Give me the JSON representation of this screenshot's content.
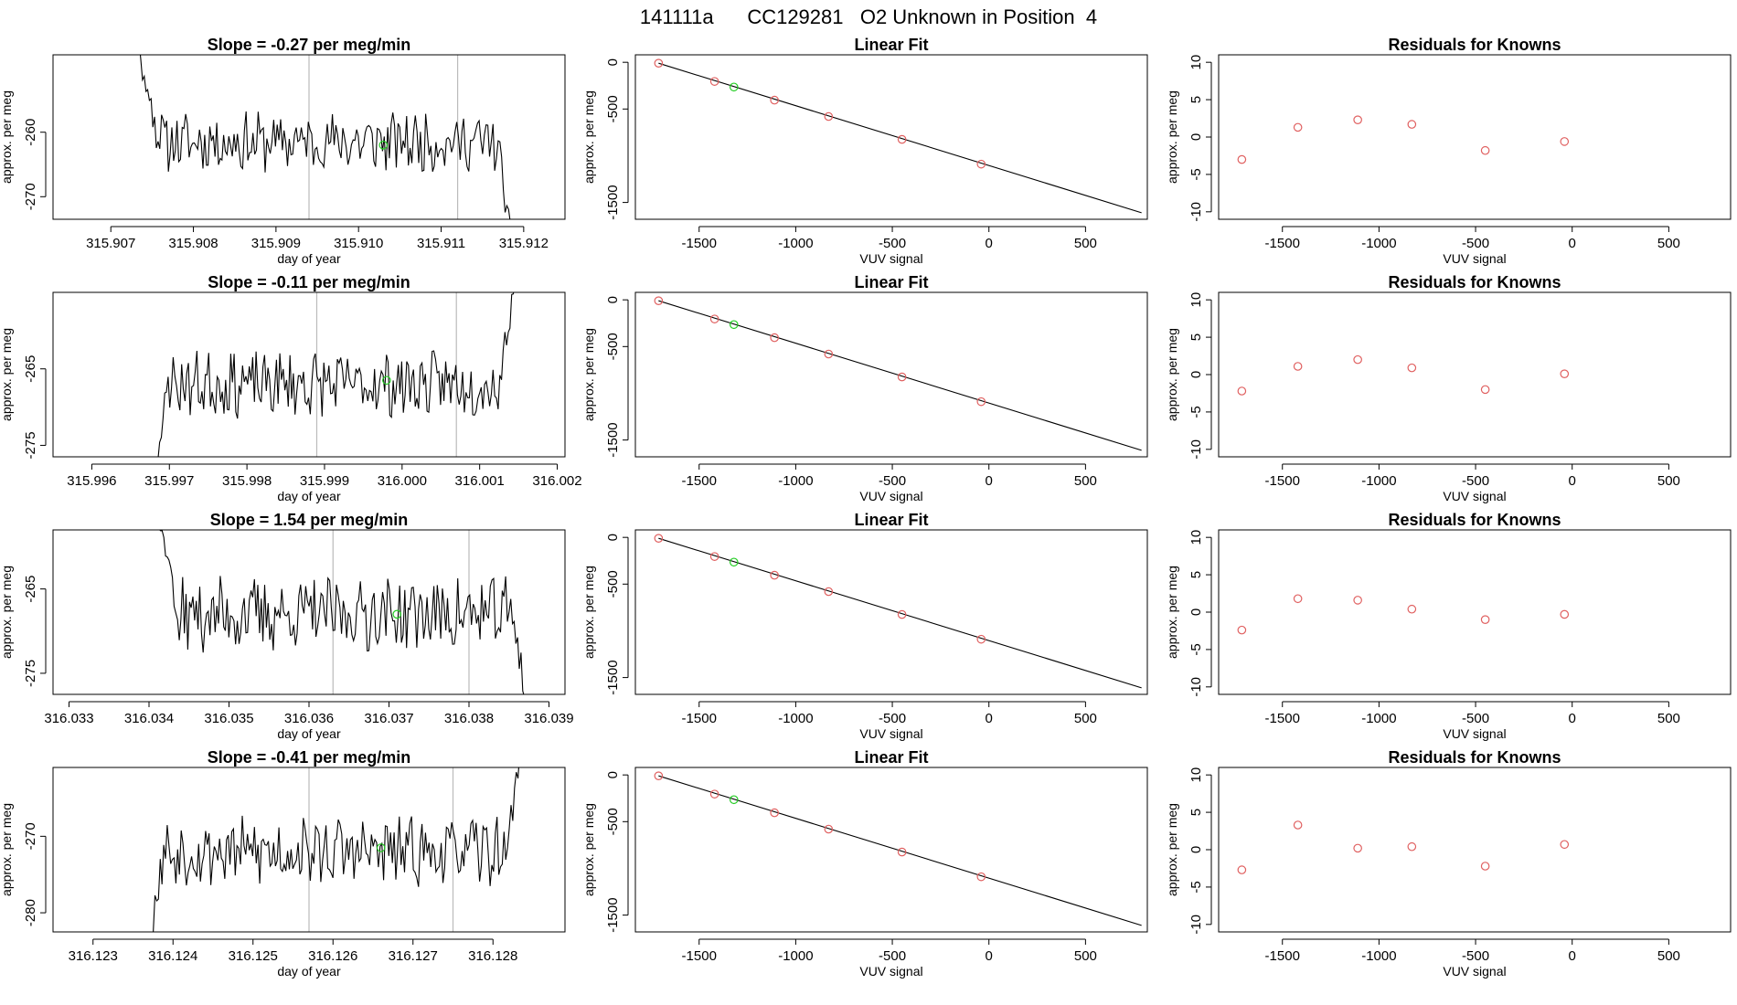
{
  "header": {
    "title": "141111a      CC129281   O2 Unknown in Position  4"
  },
  "colors": {
    "line": "#000000",
    "known_point": "#e06060",
    "unknown_point": "#22cc22",
    "marker_line": "#bbbbbb",
    "frame": "#000000"
  },
  "chart_data": [
    {
      "type": "line",
      "title": "Slope =  -0.27  per meg/min",
      "xlabel": "day of year",
      "ylabel": "approx. per meg",
      "xlim": [
        315.9063,
        315.9125
      ],
      "ylim": [
        -273.5,
        -248.0
      ],
      "xticks": [
        315.907,
        315.908,
        315.909,
        315.91,
        315.911,
        315.912
      ],
      "xtick_labels": [
        "315.907",
        "315.908",
        "315.909",
        "315.910",
        "315.911",
        "315.912"
      ],
      "yticks": [
        -260,
        -270
      ],
      "ytick_labels": [
        "-260",
        "-270"
      ],
      "start_day": 315.9073,
      "end_day": 315.9119,
      "baseline": -261.5,
      "noise": 2.5,
      "seed": 11,
      "start_level": -245,
      "end_level": -280,
      "vlines": [
        315.9094,
        315.9112
      ],
      "unknown_point": {
        "x": 315.9103,
        "y": -262.0
      }
    },
    {
      "type": "scatter",
      "title": "Linear Fit",
      "xlabel": "VUV signal",
      "ylabel": "approx. per meg",
      "xlim": [
        -1830,
        820
      ],
      "ylim": [
        -1680,
        80
      ],
      "xticks": [
        -1500,
        -1000,
        -500,
        0,
        500
      ],
      "xtick_labels": [
        "-1500",
        "-1000",
        "-500",
        "0",
        "500"
      ],
      "yticks": [
        0,
        -500,
        -1500
      ],
      "ytick_labels": [
        "0",
        "-500",
        "-1500"
      ],
      "fit_line": {
        "x0": -1710,
        "y0": -10,
        "x1": 790,
        "y1": -1610
      },
      "knowns": [
        {
          "x": -1710,
          "y": -10
        },
        {
          "x": -1420,
          "y": -205
        },
        {
          "x": -1110,
          "y": -405
        },
        {
          "x": -830,
          "y": -580
        },
        {
          "x": -450,
          "y": -825
        },
        {
          "x": -40,
          "y": -1090
        }
      ],
      "unknown_point": {
        "x": -1320,
        "y": -265
      }
    },
    {
      "type": "scatter",
      "title": "Residuals for Knowns",
      "xlabel": "VUV signal",
      "ylabel": "approx. per meg",
      "xlim": [
        -1830,
        820
      ],
      "ylim": [
        -11,
        11
      ],
      "xticks": [
        -1500,
        -1000,
        -500,
        0,
        500
      ],
      "xtick_labels": [
        "-1500",
        "-1000",
        "-500",
        "0",
        "500"
      ],
      "yticks": [
        10,
        5,
        0,
        -5,
        -10
      ],
      "ytick_labels": [
        "10",
        "5",
        "0",
        "-5",
        "-10"
      ],
      "points": [
        {
          "x": -1710,
          "y": -3.0
        },
        {
          "x": -1420,
          "y": 1.3
        },
        {
          "x": -1110,
          "y": 2.3
        },
        {
          "x": -830,
          "y": 1.7
        },
        {
          "x": -450,
          "y": -1.8
        },
        {
          "x": -40,
          "y": -0.6
        }
      ]
    },
    {
      "type": "line",
      "title": "Slope =  -0.11  per meg/min",
      "xlabel": "day of year",
      "ylabel": "approx. per meg",
      "xlim": [
        315.9955,
        316.0021
      ],
      "ylim": [
        -276.5,
        -255.0
      ],
      "xticks": [
        315.996,
        315.997,
        315.998,
        315.999,
        316.0,
        316.001,
        316.002
      ],
      "xtick_labels": [
        "315.996",
        "315.997",
        "315.998",
        "315.999",
        "316.000",
        "316.001",
        "316.002"
      ],
      "yticks": [
        -265,
        -275
      ],
      "ytick_labels": [
        "-265",
        "-275"
      ],
      "start_day": 315.9967,
      "end_day": 316.0015,
      "baseline": -267.0,
      "noise": 2.3,
      "seed": 23,
      "start_level": -285,
      "end_level": -250,
      "vlines": [
        315.9989,
        316.0007
      ],
      "unknown_point": {
        "x": 315.9998,
        "y": -266.5
      }
    },
    {
      "type": "scatter",
      "title": "Linear Fit",
      "xlabel": "VUV signal",
      "ylabel": "approx. per meg",
      "xlim": [
        -1830,
        820
      ],
      "ylim": [
        -1680,
        80
      ],
      "xticks": [
        -1500,
        -1000,
        -500,
        0,
        500
      ],
      "xtick_labels": [
        "-1500",
        "-1000",
        "-500",
        "0",
        "500"
      ],
      "yticks": [
        0,
        -500,
        -1500
      ],
      "ytick_labels": [
        "0",
        "-500",
        "-1500"
      ],
      "fit_line": {
        "x0": -1710,
        "y0": -10,
        "x1": 790,
        "y1": -1610
      },
      "knowns": [
        {
          "x": -1710,
          "y": -10
        },
        {
          "x": -1420,
          "y": -205
        },
        {
          "x": -1110,
          "y": -405
        },
        {
          "x": -830,
          "y": -580
        },
        {
          "x": -450,
          "y": -825
        },
        {
          "x": -40,
          "y": -1090
        }
      ],
      "unknown_point": {
        "x": -1320,
        "y": -265
      }
    },
    {
      "type": "scatter",
      "title": "Residuals for Knowns",
      "xlabel": "VUV signal",
      "ylabel": "approx. per meg",
      "xlim": [
        -1830,
        820
      ],
      "ylim": [
        -11,
        11
      ],
      "xticks": [
        -1500,
        -1000,
        -500,
        0,
        500
      ],
      "xtick_labels": [
        "-1500",
        "-1000",
        "-500",
        "0",
        "500"
      ],
      "yticks": [
        10,
        5,
        0,
        -5,
        -10
      ],
      "ytick_labels": [
        "10",
        "5",
        "0",
        "-5",
        "-10"
      ],
      "points": [
        {
          "x": -1710,
          "y": -2.2
        },
        {
          "x": -1420,
          "y": 1.1
        },
        {
          "x": -1110,
          "y": 2.0
        },
        {
          "x": -830,
          "y": 0.9
        },
        {
          "x": -450,
          "y": -2.0
        },
        {
          "x": -40,
          "y": 0.1
        }
      ]
    },
    {
      "type": "line",
      "title": "Slope =  1.54  per meg/min",
      "xlabel": "day of year",
      "ylabel": "approx. per meg",
      "xlim": [
        316.0328,
        316.0392
      ],
      "ylim": [
        -277.5,
        -258.0
      ],
      "xticks": [
        316.033,
        316.034,
        316.035,
        316.036,
        316.037,
        316.038,
        316.039
      ],
      "xtick_labels": [
        "316.033",
        "316.034",
        "316.035",
        "316.036",
        "316.037",
        "316.038",
        "316.039"
      ],
      "yticks": [
        -265,
        -275
      ],
      "ytick_labels": [
        "-265",
        "-275"
      ],
      "start_day": 316.0341,
      "end_day": 316.0388,
      "baseline": -268.0,
      "noise": 2.4,
      "seed": 37,
      "start_level": -255,
      "end_level": -285,
      "vlines": [
        316.0363,
        316.038
      ],
      "unknown_point": {
        "x": 316.0371,
        "y": -268.0
      }
    },
    {
      "type": "scatter",
      "title": "Linear Fit",
      "xlabel": "VUV signal",
      "ylabel": "approx. per meg",
      "xlim": [
        -1830,
        820
      ],
      "ylim": [
        -1680,
        80
      ],
      "xticks": [
        -1500,
        -1000,
        -500,
        0,
        500
      ],
      "xtick_labels": [
        "-1500",
        "-1000",
        "-500",
        "0",
        "500"
      ],
      "yticks": [
        0,
        -500,
        -1500
      ],
      "ytick_labels": [
        "0",
        "-500",
        "-1500"
      ],
      "fit_line": {
        "x0": -1710,
        "y0": -10,
        "x1": 790,
        "y1": -1610
      },
      "knowns": [
        {
          "x": -1710,
          "y": -10
        },
        {
          "x": -1420,
          "y": -205
        },
        {
          "x": -1110,
          "y": -405
        },
        {
          "x": -830,
          "y": -580
        },
        {
          "x": -450,
          "y": -825
        },
        {
          "x": -40,
          "y": -1090
        }
      ],
      "unknown_point": {
        "x": -1320,
        "y": -265
      }
    },
    {
      "type": "scatter",
      "title": "Residuals for Knowns",
      "xlabel": "VUV signal",
      "ylabel": "approx. per meg",
      "xlim": [
        -1830,
        820
      ],
      "ylim": [
        -11,
        11
      ],
      "xticks": [
        -1500,
        -1000,
        -500,
        0,
        500
      ],
      "xtick_labels": [
        "-1500",
        "-1000",
        "-500",
        "0",
        "500"
      ],
      "yticks": [
        10,
        5,
        0,
        -5,
        -10
      ],
      "ytick_labels": [
        "10",
        "5",
        "0",
        "-5",
        "-10"
      ],
      "points": [
        {
          "x": -1710,
          "y": -2.4
        },
        {
          "x": -1420,
          "y": 1.8
        },
        {
          "x": -1110,
          "y": 1.6
        },
        {
          "x": -830,
          "y": 0.4
        },
        {
          "x": -450,
          "y": -1.0
        },
        {
          "x": -40,
          "y": -0.3
        }
      ]
    },
    {
      "type": "line",
      "title": "Slope =  -0.41  per meg/min",
      "xlabel": "day of year",
      "ylabel": "approx. per meg",
      "xlim": [
        316.1225,
        316.1289
      ],
      "ylim": [
        -282.5,
        -261.0
      ],
      "xticks": [
        316.123,
        316.124,
        316.125,
        316.126,
        316.127,
        316.128
      ],
      "xtick_labels": [
        "316.123",
        "316.124",
        "316.125",
        "316.126",
        "316.127",
        "316.128"
      ],
      "yticks": [
        -270,
        -280
      ],
      "ytick_labels": [
        "-270",
        "-280"
      ],
      "start_day": 316.1236,
      "end_day": 316.1284,
      "baseline": -272.0,
      "noise": 2.4,
      "seed": 53,
      "start_level": -290,
      "end_level": -255,
      "vlines": [
        316.1257,
        316.1275
      ],
      "unknown_point": {
        "x": 316.1266,
        "y": -271.5
      }
    },
    {
      "type": "scatter",
      "title": "Linear Fit",
      "xlabel": "VUV signal",
      "ylabel": "approx. per meg",
      "xlim": [
        -1830,
        820
      ],
      "ylim": [
        -1680,
        80
      ],
      "xticks": [
        -1500,
        -1000,
        -500,
        0,
        500
      ],
      "xtick_labels": [
        "-1500",
        "-1000",
        "-500",
        "0",
        "500"
      ],
      "yticks": [
        0,
        -500,
        -1500
      ],
      "ytick_labels": [
        "0",
        "-500",
        "-1500"
      ],
      "fit_line": {
        "x0": -1710,
        "y0": -10,
        "x1": 790,
        "y1": -1610
      },
      "knowns": [
        {
          "x": -1710,
          "y": -10
        },
        {
          "x": -1420,
          "y": -205
        },
        {
          "x": -1110,
          "y": -405
        },
        {
          "x": -830,
          "y": -580
        },
        {
          "x": -450,
          "y": -825
        },
        {
          "x": -40,
          "y": -1090
        }
      ],
      "unknown_point": {
        "x": -1320,
        "y": -265
      }
    },
    {
      "type": "scatter",
      "title": "Residuals for Knowns",
      "xlabel": "VUV signal",
      "ylabel": "approx. per meg",
      "xlim": [
        -1830,
        820
      ],
      "ylim": [
        -11,
        11
      ],
      "xticks": [
        -1500,
        -1000,
        -500,
        0,
        500
      ],
      "xtick_labels": [
        "-1500",
        "-1000",
        "-500",
        "0",
        "500"
      ],
      "yticks": [
        10,
        5,
        0,
        -5,
        -10
      ],
      "ytick_labels": [
        "10",
        "5",
        "0",
        "-5",
        "-10"
      ],
      "points": [
        {
          "x": -1710,
          "y": -2.7
        },
        {
          "x": -1420,
          "y": 3.3
        },
        {
          "x": -1110,
          "y": 0.2
        },
        {
          "x": -830,
          "y": 0.4
        },
        {
          "x": -450,
          "y": -2.2
        },
        {
          "x": -40,
          "y": 0.7
        }
      ]
    }
  ]
}
